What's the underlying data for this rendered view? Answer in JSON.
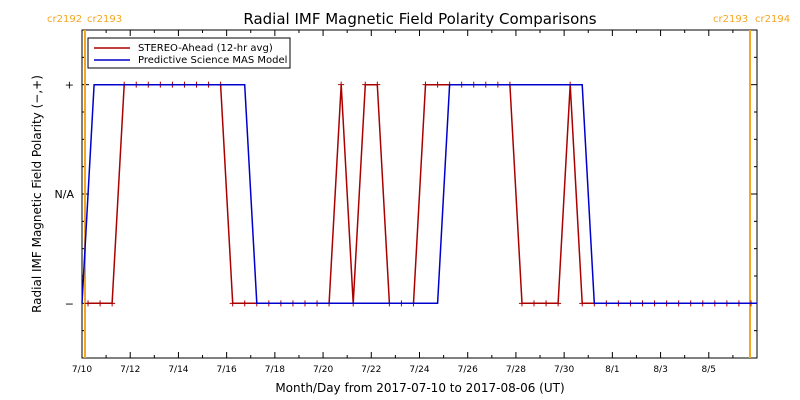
{
  "chart_data": {
    "type": "line",
    "title": "Radial IMF Magnetic Field Polarity Comparisons",
    "xlabel": "Month/Day from 2017-07-10 to 2017-08-06 (UT)",
    "ylabel": "Radial IMF Magnetic Field Polarity (−,+)",
    "x_range": [
      "2017-07-10",
      "2017-08-06"
    ],
    "y_categories": [
      "−",
      "N/A",
      "+"
    ],
    "y_category_values": [
      -1,
      0,
      1
    ],
    "x_tick_labels": [
      "7/10",
      "7/12",
      "7/14",
      "7/16",
      "7/18",
      "7/20",
      "7/22",
      "7/24",
      "7/26",
      "7/28",
      "7/30",
      "8/1",
      "8/3",
      "8/5"
    ],
    "y_tick_labels": [
      "+",
      "N/A",
      "−"
    ],
    "carrington_markers": [
      {
        "left": "cr2192",
        "right": "cr2193",
        "position": "left"
      },
      {
        "left": "cr2193",
        "right": "cr2194",
        "position": "right"
      }
    ],
    "legend": {
      "placement": "top-left",
      "box": true
    },
    "series": [
      {
        "name": "STEREO-Ahead (12-hr avg)",
        "color": "#aa0000",
        "markers": true,
        "points": [
          [
            "2017-07-10T06:00",
            -1
          ],
          [
            "2017-07-10T18:00",
            -1
          ],
          [
            "2017-07-11T06:00",
            -1
          ],
          [
            "2017-07-11T18:00",
            1
          ],
          [
            "2017-07-12T06:00",
            1
          ],
          [
            "2017-07-12T18:00",
            1
          ],
          [
            "2017-07-13T06:00",
            1
          ],
          [
            "2017-07-13T18:00",
            1
          ],
          [
            "2017-07-14T06:00",
            1
          ],
          [
            "2017-07-14T18:00",
            1
          ],
          [
            "2017-07-15T06:00",
            1
          ],
          [
            "2017-07-15T18:00",
            1
          ],
          [
            "2017-07-16T06:00",
            -1
          ],
          [
            "2017-07-16T18:00",
            -1
          ],
          [
            "2017-07-17T06:00",
            -1
          ],
          [
            "2017-07-17T18:00",
            -1
          ],
          [
            "2017-07-18T06:00",
            -1
          ],
          [
            "2017-07-18T18:00",
            -1
          ],
          [
            "2017-07-19T06:00",
            -1
          ],
          [
            "2017-07-19T18:00",
            -1
          ],
          [
            "2017-07-20T06:00",
            -1
          ],
          [
            "2017-07-20T18:00",
            1
          ],
          [
            "2017-07-21T06:00",
            -1
          ],
          [
            "2017-07-21T18:00",
            1
          ],
          [
            "2017-07-22T06:00",
            1
          ],
          [
            "2017-07-22T18:00",
            -1
          ],
          [
            "2017-07-23T06:00",
            -1
          ],
          [
            "2017-07-23T18:00",
            -1
          ],
          [
            "2017-07-24T06:00",
            1
          ],
          [
            "2017-07-24T18:00",
            1
          ],
          [
            "2017-07-25T06:00",
            1
          ],
          [
            "2017-07-25T18:00",
            1
          ],
          [
            "2017-07-26T06:00",
            1
          ],
          [
            "2017-07-26T18:00",
            1
          ],
          [
            "2017-07-27T06:00",
            1
          ],
          [
            "2017-07-27T18:00",
            1
          ],
          [
            "2017-07-28T06:00",
            -1
          ],
          [
            "2017-07-28T18:00",
            -1
          ],
          [
            "2017-07-29T06:00",
            -1
          ],
          [
            "2017-07-29T18:00",
            -1
          ],
          [
            "2017-07-30T06:00",
            1
          ],
          [
            "2017-07-30T18:00",
            -1
          ],
          [
            "2017-07-31T06:00",
            -1
          ],
          [
            "2017-07-31T18:00",
            -1
          ],
          [
            "2017-08-01T06:00",
            -1
          ],
          [
            "2017-08-01T18:00",
            -1
          ],
          [
            "2017-08-02T06:00",
            -1
          ],
          [
            "2017-08-02T18:00",
            -1
          ],
          [
            "2017-08-03T06:00",
            -1
          ],
          [
            "2017-08-03T18:00",
            -1
          ],
          [
            "2017-08-04T06:00",
            -1
          ],
          [
            "2017-08-04T18:00",
            -1
          ],
          [
            "2017-08-05T06:00",
            -1
          ],
          [
            "2017-08-05T18:00",
            -1
          ],
          [
            "2017-08-06T06:00",
            -1
          ],
          [
            "2017-08-06T18:00",
            -1
          ]
        ]
      },
      {
        "name": "Predictive Science MAS Model",
        "color": "#0000cc",
        "markers": false,
        "points": [
          [
            "2017-07-10T00:00",
            -1
          ],
          [
            "2017-07-10T12:00",
            1
          ],
          [
            "2017-07-16T18:00",
            1
          ],
          [
            "2017-07-17T06:00",
            -1
          ],
          [
            "2017-07-24T18:00",
            -1
          ],
          [
            "2017-07-25T06:00",
            1
          ],
          [
            "2017-07-30T18:00",
            1
          ],
          [
            "2017-07-31T06:00",
            -1
          ],
          [
            "2017-08-06T23:59",
            -1
          ]
        ]
      }
    ]
  }
}
